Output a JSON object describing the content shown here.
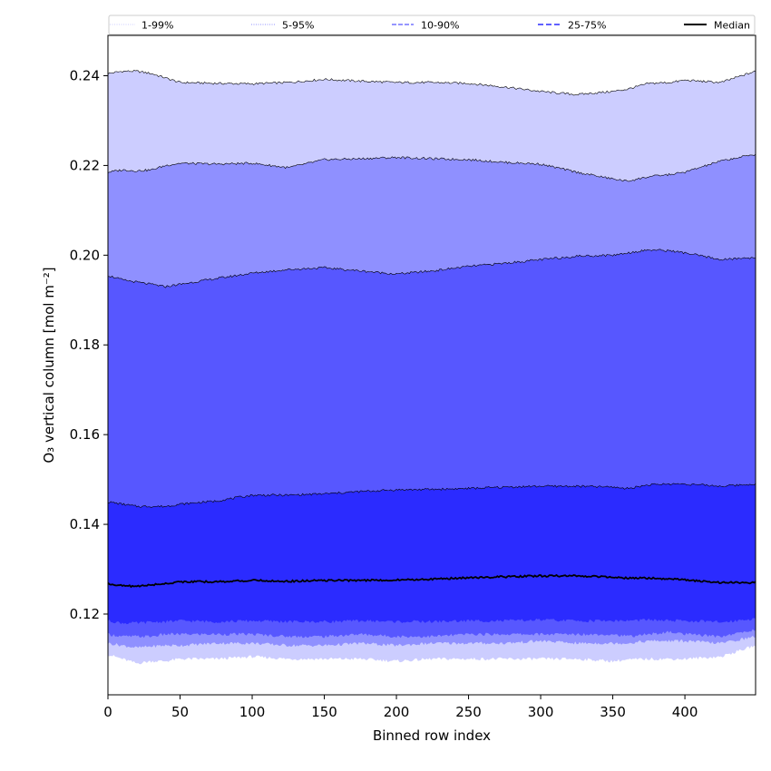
{
  "chart_data": {
    "type": "area",
    "xlabel": "Binned row index",
    "ylabel": "O₃ vertical column [mol m⁻²]",
    "xlim": [
      0,
      449
    ],
    "ylim": [
      0.102,
      0.249
    ],
    "xticks": [
      0,
      50,
      100,
      150,
      200,
      250,
      300,
      350,
      400
    ],
    "xtick_labels": [
      "0",
      "50",
      "100",
      "150",
      "200",
      "250",
      "300",
      "350",
      "400"
    ],
    "yticks": [
      0.12,
      0.14,
      0.16,
      0.18,
      0.2,
      0.22,
      0.24
    ],
    "ytick_labels": [
      "0.12",
      "0.14",
      "0.16",
      "0.18",
      "0.20",
      "0.22",
      "0.24"
    ],
    "grid": false,
    "legend": {
      "placement": "top",
      "entries": [
        "1-99%",
        "5-95%",
        "10-90%",
        "25-75%",
        "Median"
      ]
    },
    "x": [
      0,
      10,
      20,
      30,
      40,
      50,
      75,
      100,
      125,
      150,
      175,
      200,
      225,
      250,
      275,
      300,
      325,
      350,
      360,
      375,
      390,
      400,
      425,
      449
    ],
    "bands": [
      {
        "name": "1-99%",
        "fill": "#cccdff",
        "lower": [
          0.111,
          0.11,
          0.109,
          0.1095,
          0.1095,
          0.11,
          0.11,
          0.1105,
          0.11,
          0.11,
          0.11,
          0.1095,
          0.11,
          0.11,
          0.11,
          0.11,
          0.11,
          0.1095,
          0.1098,
          0.11,
          0.11,
          0.11,
          0.1105,
          0.113
        ],
        "upper": [
          0.2405,
          0.241,
          0.241,
          0.2405,
          0.2395,
          0.2385,
          0.2383,
          0.2382,
          0.2385,
          0.2392,
          0.2388,
          0.2385,
          0.2385,
          0.2383,
          0.2375,
          0.2365,
          0.2358,
          0.2365,
          0.237,
          0.2383,
          0.2385,
          0.239,
          0.2385,
          0.241
        ]
      },
      {
        "name": "5-95%",
        "fill": "#8f90ff",
        "lower": [
          0.1135,
          0.113,
          0.1125,
          0.1128,
          0.113,
          0.113,
          0.1135,
          0.1135,
          0.113,
          0.113,
          0.1135,
          0.113,
          0.1135,
          0.1135,
          0.1135,
          0.114,
          0.1135,
          0.1135,
          0.1135,
          0.114,
          0.114,
          0.114,
          0.1135,
          0.115
        ],
        "upper": [
          0.2185,
          0.219,
          0.2188,
          0.219,
          0.22,
          0.2205,
          0.2203,
          0.2205,
          0.2195,
          0.2213,
          0.2215,
          0.2218,
          0.2215,
          0.2213,
          0.2207,
          0.2203,
          0.2185,
          0.217,
          0.2165,
          0.2175,
          0.218,
          0.2185,
          0.221,
          0.2225
        ]
      },
      {
        "name": "10-90%",
        "fill": "#5757ff",
        "lower": [
          0.1155,
          0.115,
          0.115,
          0.115,
          0.1155,
          0.1155,
          0.1155,
          0.1155,
          0.115,
          0.115,
          0.1155,
          0.115,
          0.115,
          0.1155,
          0.1155,
          0.1155,
          0.1155,
          0.1155,
          0.115,
          0.1155,
          0.116,
          0.1155,
          0.115,
          0.1165
        ],
        "upper": [
          0.1955,
          0.1945,
          0.194,
          0.1935,
          0.193,
          0.1935,
          0.1948,
          0.196,
          0.1968,
          0.1972,
          0.1965,
          0.1958,
          0.1965,
          0.1975,
          0.1982,
          0.199,
          0.1998,
          0.2,
          0.2005,
          0.2012,
          0.201,
          0.2005,
          0.199,
          0.1995
        ]
      },
      {
        "name": "25-75%",
        "fill": "#2b2bff",
        "lower": [
          0.1185,
          0.118,
          0.118,
          0.1182,
          0.1183,
          0.1185,
          0.1183,
          0.1185,
          0.1183,
          0.1183,
          0.1185,
          0.1183,
          0.1183,
          0.1185,
          0.1185,
          0.1187,
          0.1185,
          0.1185,
          0.1185,
          0.1187,
          0.1185,
          0.1185,
          0.1182,
          0.119
        ],
        "upper": [
          0.145,
          0.1445,
          0.144,
          0.144,
          0.144,
          0.1445,
          0.1452,
          0.1465,
          0.1465,
          0.1468,
          0.1473,
          0.1477,
          0.1478,
          0.148,
          0.1483,
          0.1485,
          0.1485,
          0.1483,
          0.148,
          0.1488,
          0.149,
          0.149,
          0.1485,
          0.149
        ]
      }
    ],
    "median": {
      "name": "Median",
      "values": [
        0.1268,
        0.1263,
        0.1262,
        0.1265,
        0.1268,
        0.1272,
        0.1272,
        0.1275,
        0.1273,
        0.1275,
        0.1275,
        0.1276,
        0.1278,
        0.1281,
        0.1283,
        0.1285,
        0.1285,
        0.1283,
        0.128,
        0.128,
        0.1278,
        0.1276,
        0.127,
        0.127
      ]
    },
    "line_styles": {
      "1-99%": {
        "color": "#cccdff",
        "dash": "1,1.5",
        "width": 1
      },
      "5-95%": {
        "color": "#8f90ff",
        "dash": "1,1.5",
        "width": 1
      },
      "10-90%": {
        "color": "#5757ff",
        "dash": "5,2",
        "width": 1.2
      },
      "25-75%": {
        "color": "#2b2bff",
        "dash": "6,3",
        "width": 1.5
      },
      "Median": {
        "color": "#000000",
        "dash": "",
        "width": 2
      }
    }
  }
}
